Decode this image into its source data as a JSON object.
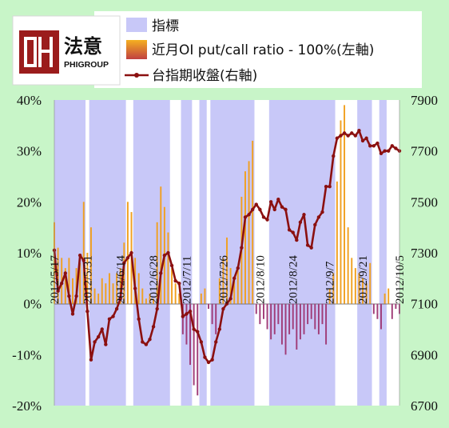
{
  "logo": {
    "mark": "法意",
    "company": "PHIGROUP"
  },
  "legend": [
    {
      "key": "index",
      "label": "指標",
      "color": "#c8c8f8"
    },
    {
      "key": "ratio",
      "label": "近月OI put/call ratio - 100%(左軸)",
      "color": "#f0a020"
    },
    {
      "key": "close",
      "label": "台指期收盤(右軸)",
      "color": "#8b1010"
    }
  ],
  "chart_data": {
    "type": "bar+line",
    "left_axis": {
      "ticks": [
        "40%",
        "30%",
        "20%",
        "10%",
        "0%",
        "-10%",
        "-20%"
      ],
      "range": [
        -20,
        40
      ]
    },
    "right_axis": {
      "ticks": [
        "7900",
        "7700",
        "7500",
        "7300",
        "7100",
        "6900",
        "6700"
      ],
      "range": [
        6700,
        7900
      ]
    },
    "x_labels": [
      "2012/5/17",
      "2012/5/31",
      "2012/6/14",
      "2012/6/28",
      "2012/7/11",
      "2012/7/26",
      "2012/8/10",
      "2012/8/24",
      "2012/9/7",
      "2012/9/21",
      "2012/10/5"
    ],
    "x_label_index": [
      0,
      9,
      18,
      27,
      36,
      46,
      56,
      65,
      75,
      84,
      94
    ],
    "indicator_periods": [
      [
        0,
        8
      ],
      [
        10,
        19
      ],
      [
        22,
        31
      ],
      [
        35,
        37
      ],
      [
        40,
        41
      ],
      [
        43,
        54
      ],
      [
        59,
        76
      ],
      [
        83,
        86
      ],
      [
        89,
        90
      ]
    ],
    "ratio_values": [
      16,
      11,
      9,
      7,
      9,
      5,
      7,
      8,
      20,
      10,
      15,
      3,
      2,
      5,
      4,
      6,
      4,
      6,
      7,
      12,
      20,
      18,
      9,
      6,
      3,
      1,
      2,
      1,
      16,
      23,
      19,
      14,
      7,
      4,
      2,
      -6,
      -8,
      -12,
      -16,
      -18,
      2,
      3,
      -1,
      -4,
      -6,
      5,
      9,
      13,
      7,
      5,
      7,
      21,
      26,
      28,
      32,
      -2,
      -4,
      -3,
      -5,
      -7,
      -6,
      -4,
      -8,
      -10,
      -6,
      -5,
      -9,
      -7,
      -6,
      -4,
      -3,
      -5,
      -6,
      -4,
      -8,
      3,
      6,
      24,
      36,
      39,
      15,
      9,
      7,
      6,
      5,
      4,
      8,
      -2,
      -3,
      -5,
      2,
      3,
      -3,
      -1,
      -2
    ],
    "close_values": [
      7310,
      7150,
      7180,
      7220,
      7130,
      7060,
      7130,
      7290,
      7270,
      7070,
      6880,
      6950,
      6970,
      7000,
      6940,
      7040,
      7050,
      7080,
      7120,
      7260,
      7280,
      7300,
      7160,
      7040,
      6950,
      6940,
      6960,
      7010,
      7080,
      7220,
      7290,
      7300,
      7250,
      7190,
      7180,
      7050,
      7060,
      7070,
      7000,
      6990,
      6950,
      6890,
      6870,
      6880,
      6950,
      7000,
      7080,
      7100,
      7120,
      7200,
      7240,
      7320,
      7440,
      7450,
      7470,
      7490,
      7470,
      7440,
      7430,
      7500,
      7470,
      7510,
      7480,
      7470,
      7390,
      7380,
      7350,
      7420,
      7450,
      7330,
      7320,
      7410,
      7440,
      7460,
      7560,
      7560,
      7680,
      7750,
      7760,
      7770,
      7760,
      7770,
      7760,
      7780,
      7740,
      7750,
      7720,
      7720,
      7730,
      7690,
      7700,
      7700,
      7720,
      7710,
      7700
    ]
  }
}
